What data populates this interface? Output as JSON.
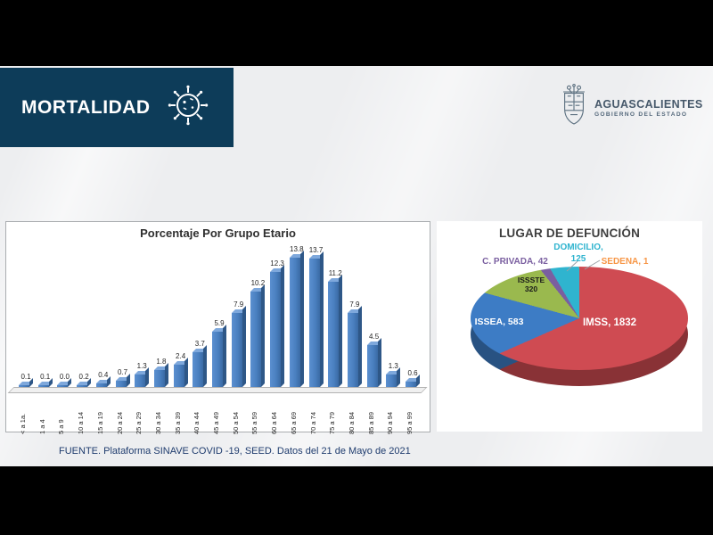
{
  "header": {
    "title": "MORTALIDAD"
  },
  "logo": {
    "name": "AGUASCALIENTES",
    "subtitle": "GOBIERNO DEL ESTADO"
  },
  "footer": {
    "source": "FUENTE. Plataforma SINAVE COVID -19, SEED. Datos del 21 de Mayo de 2021"
  },
  "chart_data": [
    {
      "type": "bar",
      "title": "Porcentaje Por Grupo Etario",
      "categories": [
        "< a 1a.",
        "1 a 4",
        "5 a 9",
        "10 a 14",
        "15 a 19",
        "20 a 24",
        "25 a 29",
        "30 a 34",
        "35 a 39",
        "40 a 44",
        "45 a 49",
        "50 a 54",
        "55 a 59",
        "60 a 64",
        "65 a 69",
        "70 a 74",
        "75 a 79",
        "80 a 84",
        "85 a 89",
        "90 a 94",
        "95 a 99"
      ],
      "values": [
        0.1,
        0.1,
        0.0,
        0.2,
        0.4,
        0.7,
        1.3,
        1.8,
        2.4,
        3.7,
        5.9,
        7.9,
        10.2,
        12.3,
        13.8,
        13.7,
        11.2,
        7.9,
        4.5,
        1.3,
        0.6
      ],
      "xlabel": "",
      "ylabel": "",
      "ylim": [
        0,
        15
      ],
      "grid": false,
      "bar_color": "#4a80c0",
      "style": "3d-column",
      "value_labels_shown": true
    },
    {
      "type": "pie",
      "title": "LUGAR DE DEFUNCIÓN",
      "style": "3d-pie",
      "start_angle_deg": 0,
      "direction": "clockwise",
      "slices": [
        {
          "label": "IMSS",
          "value": 1832,
          "color": "#cf4b52",
          "text_color": "#ffffff",
          "display": "IMSS, 1832"
        },
        {
          "label": "ISSEA",
          "value": 583,
          "color": "#3d7cc5",
          "text_color": "#ffffff",
          "display": "ISSEA, 583"
        },
        {
          "label": "ISSSTE",
          "value": 320,
          "color": "#9ab94e",
          "text_color": "#1a1a1a",
          "display_line1": "ISSSTE",
          "display_line2": "320"
        },
        {
          "label": "C. PRIVADA",
          "value": 42,
          "color": "#7a5fa0",
          "text_color": "#7a5fa0",
          "display": "C. PRIVADA, 42"
        },
        {
          "label": "DOMICILIO",
          "value": 125,
          "color": "#2fb4cf",
          "text_color": "#2fb4cf",
          "display_line1": "DOMICILIO,",
          "display_line2": "125"
        },
        {
          "label": "SEDENA",
          "value": 1,
          "color": "#f79646",
          "text_color": "#f79646",
          "display": "SEDENA, 1"
        }
      ]
    }
  ]
}
